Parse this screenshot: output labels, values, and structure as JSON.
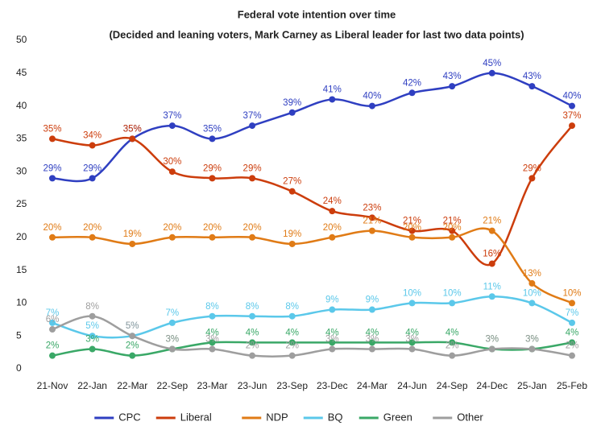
{
  "chart_data": {
    "type": "line",
    "title": "Federal vote intention over time",
    "subtitle": "(Decided and leaning voters, Mark Carney as Liberal leader for last two data points)",
    "categories": [
      "21-Nov",
      "22-Jan",
      "22-Mar",
      "22-Sep",
      "23-Mar",
      "23-Jun",
      "23-Sep",
      "23-Dec",
      "24-Mar",
      "24-Jun",
      "24-Sep",
      "24-Dec",
      "25-Jan",
      "25-Feb"
    ],
    "series": [
      {
        "name": "CPC",
        "color": "#2f3fc1",
        "values": [
          29,
          29,
          35,
          37,
          35,
          37,
          39,
          41,
          40,
          42,
          43,
          45,
          43,
          40
        ],
        "value_labels": [
          "29%",
          "29%",
          "35%",
          "37%",
          "35%",
          "37%",
          "39%",
          "41%",
          "40%",
          "42%",
          "43%",
          "45%",
          "43%",
          "40%"
        ]
      },
      {
        "name": "Liberal",
        "color": "#cc3d0c",
        "values": [
          35,
          34,
          35,
          30,
          29,
          29,
          27,
          24,
          23,
          21,
          21,
          16,
          29,
          37
        ],
        "value_labels": [
          "35%",
          "34%",
          "35%",
          "30%",
          "29%",
          "29%",
          "27%",
          "24%",
          "23%",
          "21%",
          "21%",
          "16%",
          "29%",
          "37%"
        ]
      },
      {
        "name": "NDP",
        "color": "#e07b16",
        "values": [
          20,
          20,
          19,
          20,
          20,
          20,
          19,
          20,
          21,
          20,
          20,
          21,
          13,
          10
        ],
        "value_labels": [
          "20%",
          "20%",
          "19%",
          "20%",
          "20%",
          "20%",
          "19%",
          "20%",
          "21%",
          "20%",
          "20%",
          "21%",
          "13%",
          "10%"
        ]
      },
      {
        "name": "BQ",
        "color": "#5bc8ea",
        "values": [
          7,
          5,
          5,
          7,
          8,
          8,
          8,
          9,
          9,
          10,
          10,
          11,
          10,
          7
        ],
        "value_labels": [
          "7%",
          "5%",
          "5%",
          "7%",
          "8%",
          "8%",
          "8%",
          "9%",
          "9%",
          "10%",
          "10%",
          "11%",
          "10%",
          "7%"
        ]
      },
      {
        "name": "Green",
        "color": "#3aa867",
        "values": [
          2,
          3,
          2,
          3,
          4,
          4,
          4,
          4,
          4,
          4,
          4,
          3,
          3,
          4
        ],
        "value_labels": [
          "2%",
          "3%",
          "2%",
          "3%",
          "4%",
          "4%",
          "4%",
          "4%",
          "4%",
          "4%",
          "4%",
          "3%",
          "3%",
          "4%"
        ]
      },
      {
        "name": "Other",
        "color": "#9e9e9e",
        "values": [
          6,
          8,
          5,
          3,
          3,
          2,
          2,
          3,
          3,
          3,
          2,
          3,
          3,
          2
        ],
        "value_labels": [
          "6%",
          "8%",
          "5%",
          "3%",
          "3%",
          "2%",
          "2%",
          "3%",
          "3%",
          "3%",
          "2%",
          "3%",
          "3%",
          "2%"
        ]
      }
    ],
    "ylim": [
      0,
      50
    ],
    "yticks": [
      0,
      5,
      10,
      15,
      20,
      25,
      30,
      35,
      40,
      45,
      50
    ],
    "grid": false
  }
}
